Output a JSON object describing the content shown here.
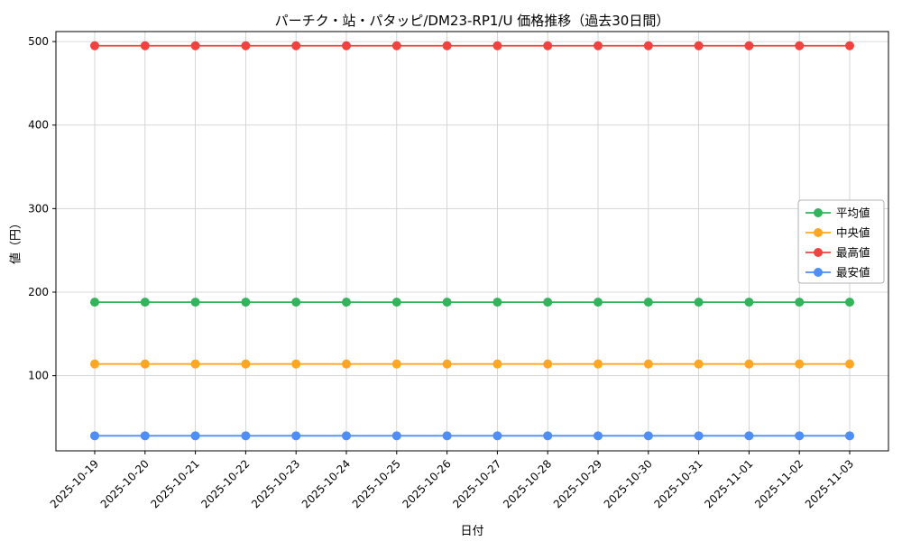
{
  "chart_data": {
    "type": "line",
    "title": "パーチク・站・パタッピ/DM23-RP1/U 価格推移（過去30日間）",
    "xlabel": "日付",
    "ylabel": "値（円）",
    "categories": [
      "2025-10-19",
      "2025-10-20",
      "2025-10-21",
      "2025-10-22",
      "2025-10-23",
      "2025-10-24",
      "2025-10-25",
      "2025-10-26",
      "2025-10-27",
      "2025-10-28",
      "2025-10-29",
      "2025-10-30",
      "2025-10-31",
      "2025-11-01",
      "2025-11-02",
      "2025-11-03"
    ],
    "series": [
      {
        "name": "平均値",
        "color": "#33b35c",
        "values": [
          188,
          188,
          188,
          188,
          188,
          188,
          188,
          188,
          188,
          188,
          188,
          188,
          188,
          188,
          188,
          188
        ]
      },
      {
        "name": "中央値",
        "color": "#ffa724",
        "values": [
          114,
          114,
          114,
          114,
          114,
          114,
          114,
          114,
          114,
          114,
          114,
          114,
          114,
          114,
          114,
          114
        ]
      },
      {
        "name": "最高値",
        "color": "#f0433f",
        "values": [
          495,
          495,
          495,
          495,
          495,
          495,
          495,
          495,
          495,
          495,
          495,
          495,
          495,
          495,
          495,
          495
        ]
      },
      {
        "name": "最安値",
        "color": "#4d8ef7",
        "values": [
          28,
          28,
          28,
          28,
          28,
          28,
          28,
          28,
          28,
          28,
          28,
          28,
          28,
          28,
          28,
          28
        ]
      }
    ],
    "ylim": [
      10,
      512
    ],
    "yticks": [
      100,
      200,
      300,
      400,
      500
    ],
    "grid": true,
    "grid_color": "#cccccc",
    "axis_color": "#000000",
    "legend_position": "right",
    "legend_border_color": "#b3b3b3"
  }
}
